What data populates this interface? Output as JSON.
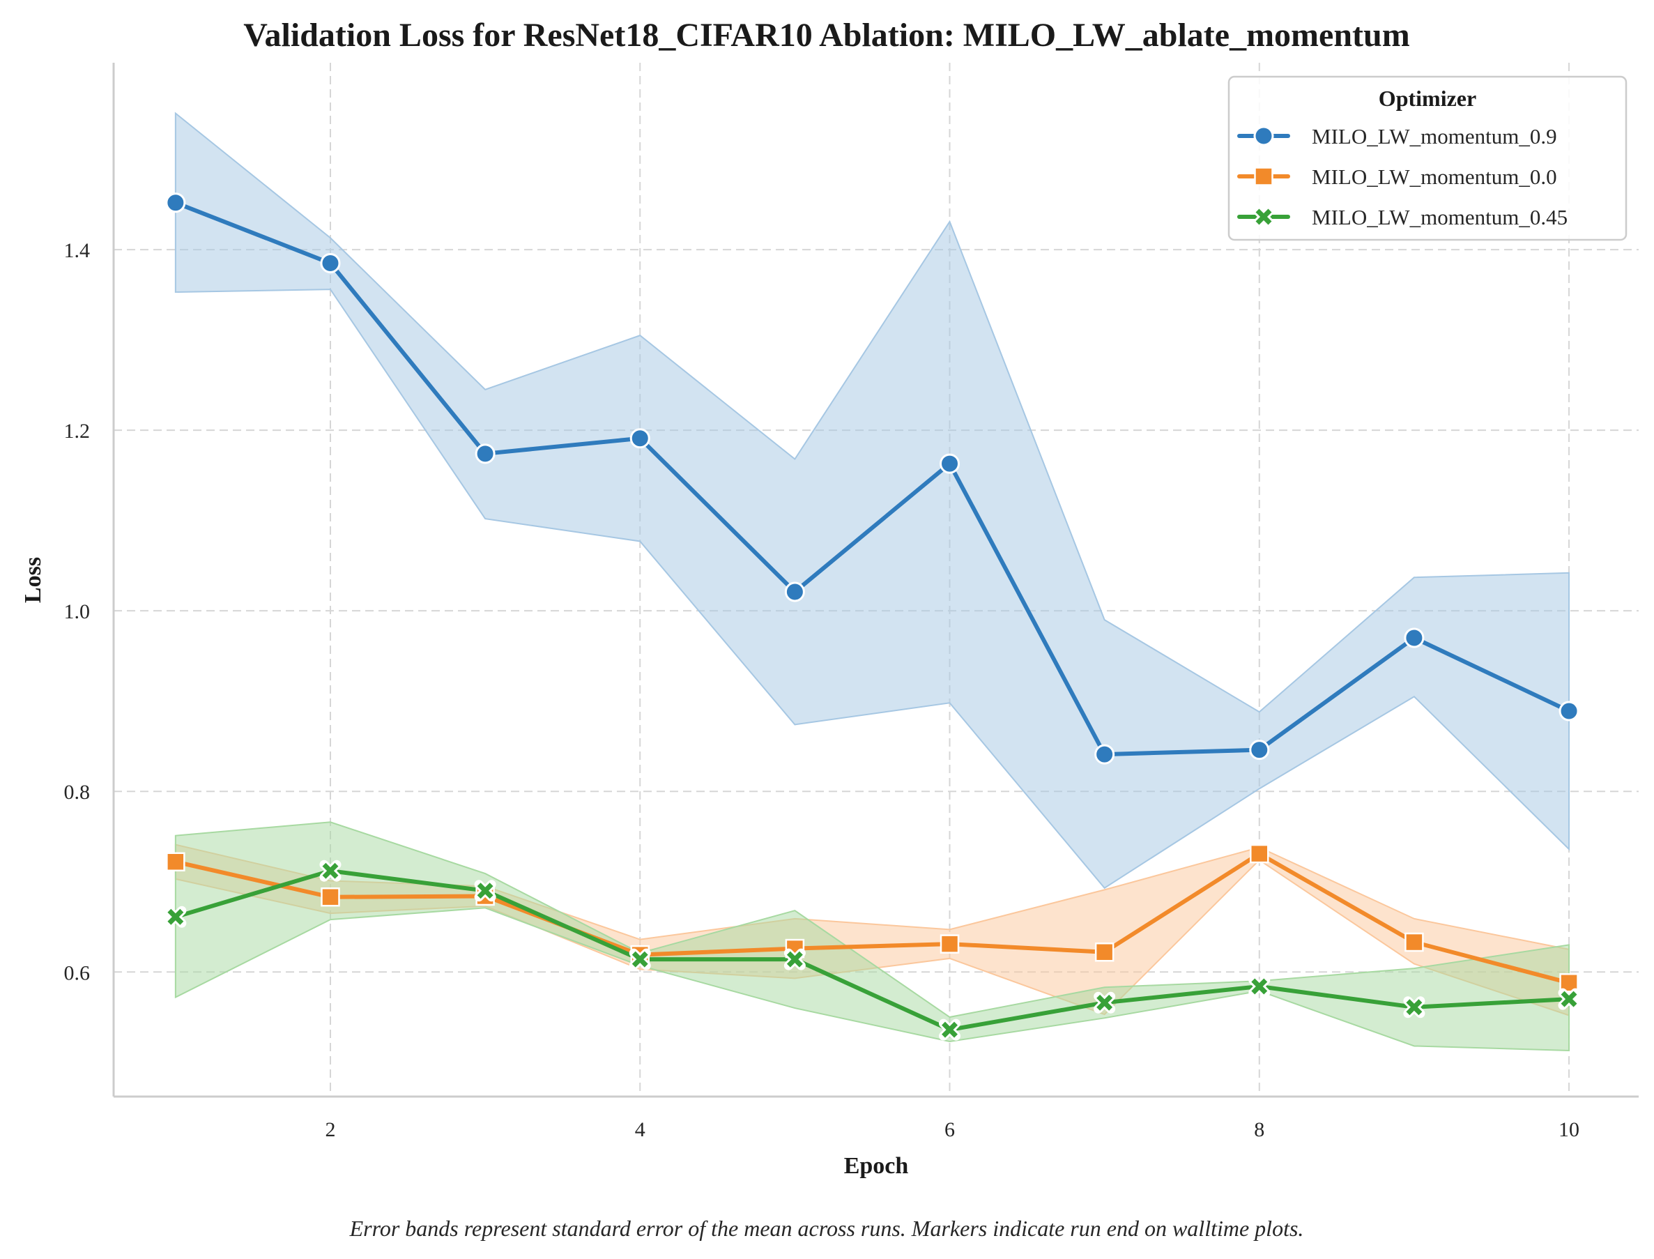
{
  "chart_data": {
    "type": "line",
    "title": "Validation Loss for ResNet18_CIFAR10 Ablation: MILO_LW_ablate_momentum",
    "xlabel": "Epoch",
    "ylabel": "Loss",
    "xlim": [
      0.6,
      10.45
    ],
    "ylim": [
      0.462,
      1.607
    ],
    "xticks": [
      2,
      4,
      6,
      8,
      10
    ],
    "xtick_labels": [
      "2",
      "4",
      "6",
      "8",
      "10"
    ],
    "yticks": [
      0.6,
      0.8,
      1.0,
      1.2,
      1.4
    ],
    "ytick_labels": [
      "0.6",
      "0.8",
      "1.0",
      "1.2",
      "1.4"
    ],
    "grid": true,
    "legend": {
      "title": "Optimizer",
      "position": "top-right"
    },
    "series": [
      {
        "name": "MILO_LW_momentum_0.9",
        "color": "#2f7bbd",
        "band_color": "#a6c7e3",
        "marker": "circle",
        "x": [
          1,
          2,
          3,
          4,
          5,
          6,
          7,
          8,
          9,
          10
        ],
        "values": [
          1.452,
          1.385,
          1.174,
          1.191,
          1.021,
          1.163,
          0.841,
          0.846,
          0.97,
          0.889
        ],
        "band_low": [
          1.353,
          1.356,
          1.102,
          1.077,
          0.874,
          0.898,
          0.693,
          0.803,
          0.905,
          0.736
        ],
        "band_high": [
          1.551,
          1.413,
          1.245,
          1.305,
          1.168,
          1.431,
          0.99,
          0.888,
          1.037,
          1.042
        ]
      },
      {
        "name": "MILO_LW_momentum_0.0",
        "color": "#f28a2a",
        "band_color": "#fbc79c",
        "marker": "square",
        "x": [
          1,
          2,
          3,
          4,
          5,
          6,
          7,
          8,
          9,
          10
        ],
        "values": [
          0.722,
          0.683,
          0.684,
          0.619,
          0.626,
          0.631,
          0.622,
          0.731,
          0.633,
          0.588
        ],
        "band_low": [
          0.703,
          0.665,
          0.673,
          0.603,
          0.593,
          0.615,
          0.553,
          0.724,
          0.609,
          0.552
        ],
        "band_high": [
          0.741,
          0.701,
          0.695,
          0.636,
          0.659,
          0.647,
          0.691,
          0.738,
          0.659,
          0.625
        ]
      },
      {
        "name": "MILO_LW_momentum_0.45",
        "color": "#38a138",
        "band_color": "#a7d9a1",
        "marker": "x",
        "x": [
          1,
          2,
          3,
          4,
          5,
          6,
          7,
          8,
          9,
          10
        ],
        "values": [
          0.661,
          0.712,
          0.69,
          0.614,
          0.614,
          0.536,
          0.566,
          0.584,
          0.561,
          0.57
        ],
        "band_low": [
          0.572,
          0.658,
          0.671,
          0.607,
          0.56,
          0.523,
          0.549,
          0.579,
          0.518,
          0.513
        ],
        "band_high": [
          0.751,
          0.766,
          0.709,
          0.621,
          0.668,
          0.55,
          0.583,
          0.59,
          0.604,
          0.63
        ]
      }
    ],
    "caption": "Error bands represent standard error of the mean across runs. Markers indicate run end on walltime plots."
  }
}
